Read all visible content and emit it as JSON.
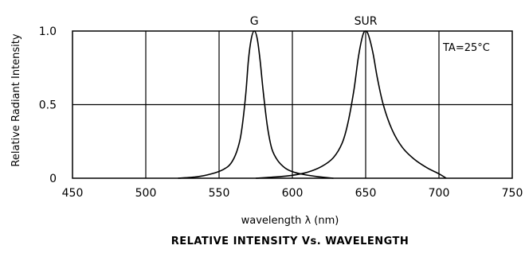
{
  "chart_data": {
    "type": "line",
    "title": "RELATIVE INTENSITY Vs. WAVELENGTH",
    "xlabel": "wavelength λ (nm)",
    "ylabel": "Relative Radiant Intensity",
    "xlim": [
      450,
      750
    ],
    "ylim": [
      0,
      1.0
    ],
    "xticks": [
      "450",
      "500",
      "550",
      "600",
      "650",
      "700",
      "750"
    ],
    "yticks": [
      "0",
      "0.5",
      "1.0"
    ],
    "grid": true,
    "annotation": "TA=25°C",
    "series": [
      {
        "name": "G",
        "x": [
          522,
          535,
          545,
          553,
          558,
          562,
          565,
          568,
          570,
          572,
          574,
          576,
          578,
          580,
          583,
          586,
          590,
          595,
          600,
          608,
          618,
          628
        ],
        "y": [
          0.0,
          0.01,
          0.03,
          0.06,
          0.1,
          0.18,
          0.3,
          0.55,
          0.8,
          0.95,
          1.0,
          0.95,
          0.8,
          0.6,
          0.35,
          0.2,
          0.12,
          0.07,
          0.045,
          0.025,
          0.01,
          0.0
        ]
      },
      {
        "name": "SUR",
        "x": [
          575,
          590,
          600,
          610,
          620,
          628,
          634,
          638,
          642,
          645,
          648,
          650,
          652,
          655,
          658,
          662,
          668,
          675,
          683,
          692,
          700,
          705
        ],
        "y": [
          0.0,
          0.01,
          0.02,
          0.04,
          0.08,
          0.14,
          0.24,
          0.38,
          0.6,
          0.82,
          0.97,
          1.0,
          0.97,
          0.85,
          0.68,
          0.5,
          0.33,
          0.21,
          0.13,
          0.07,
          0.03,
          0.0
        ]
      }
    ]
  }
}
